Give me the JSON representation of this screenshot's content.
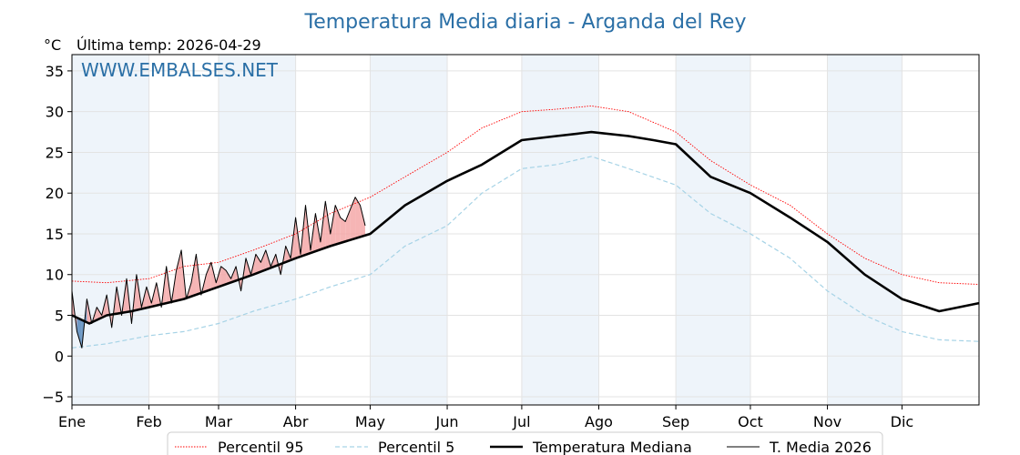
{
  "header": {
    "title": "Temperatura Media diaria - Arganda del Rey",
    "unit_label": "°C",
    "last_temp": "Última temp: 2026-04-29",
    "watermark": "WWW.EMBALSES.NET"
  },
  "chart_data": {
    "type": "line",
    "title": "Temperatura Media diaria - Arganda del Rey",
    "ylabel": "°C",
    "xlabel": "",
    "ylim": [
      -6,
      37
    ],
    "xlim": [
      1,
      366
    ],
    "y_ticks": [
      -5,
      0,
      5,
      10,
      15,
      20,
      25,
      30,
      35
    ],
    "y_tick_labels": [
      "−5",
      "0",
      "5",
      "10",
      "15",
      "20",
      "25",
      "30",
      "35"
    ],
    "x_ticks": [
      {
        "day": 1,
        "label": "Ene"
      },
      {
        "day": 32,
        "label": "Feb"
      },
      {
        "day": 60,
        "label": "Mar"
      },
      {
        "day": 91,
        "label": "Abr"
      },
      {
        "day": 121,
        "label": "May"
      },
      {
        "day": 152,
        "label": "Jun"
      },
      {
        "day": 182,
        "label": "Jul"
      },
      {
        "day": 213,
        "label": "Ago"
      },
      {
        "day": 244,
        "label": "Sep"
      },
      {
        "day": 274,
        "label": "Oct"
      },
      {
        "day": 305,
        "label": "Nov"
      },
      {
        "day": 335,
        "label": "Dic"
      }
    ],
    "shaded_months": [
      [
        1,
        32
      ],
      [
        60,
        91
      ],
      [
        121,
        152
      ],
      [
        182,
        213
      ],
      [
        244,
        274
      ],
      [
        305,
        335
      ]
    ],
    "grid": true,
    "legend_position": "bottom",
    "x_unit": "día del año",
    "series": [
      {
        "name": "Percentil 95",
        "color": "#ff0000",
        "style": "dotted",
        "x": [
          1,
          15,
          32,
          46,
          60,
          74,
          91,
          105,
          121,
          135,
          152,
          166,
          182,
          196,
          210,
          225,
          244,
          258,
          274,
          290,
          305,
          320,
          335,
          350,
          366
        ],
        "y": [
          9.2,
          9.0,
          9.5,
          11.0,
          11.5,
          13.0,
          15.0,
          17.5,
          19.5,
          22.0,
          25.0,
          28.0,
          30.0,
          30.3,
          30.7,
          30.0,
          27.5,
          24.0,
          21.0,
          18.5,
          15.0,
          12.0,
          10.0,
          9.0,
          8.8
        ]
      },
      {
        "name": "Percentil 5",
        "color": "#a6d3e6",
        "style": "dashed",
        "x": [
          1,
          15,
          32,
          46,
          60,
          74,
          91,
          105,
          121,
          135,
          152,
          166,
          182,
          196,
          210,
          225,
          244,
          258,
          274,
          290,
          305,
          320,
          335,
          350,
          366
        ],
        "y": [
          1.0,
          1.5,
          2.5,
          3.0,
          4.0,
          5.5,
          7.0,
          8.5,
          10.0,
          13.5,
          16.0,
          20.0,
          23.0,
          23.5,
          24.5,
          23.0,
          21.0,
          17.5,
          15.0,
          12.0,
          8.0,
          5.0,
          3.0,
          2.0,
          1.8
        ]
      },
      {
        "name": "Temperatura Mediana",
        "color": "#000000",
        "style": "thick",
        "x": [
          1,
          8,
          15,
          25,
          32,
          46,
          60,
          74,
          91,
          105,
          121,
          135,
          152,
          166,
          182,
          196,
          210,
          225,
          235,
          244,
          258,
          274,
          290,
          305,
          320,
          335,
          350,
          366
        ],
        "y": [
          5.0,
          4.0,
          5.0,
          5.5,
          6.0,
          7.0,
          8.5,
          10.0,
          12.0,
          13.5,
          15.0,
          18.5,
          21.5,
          23.5,
          26.5,
          27.0,
          27.5,
          27.0,
          26.5,
          26.0,
          22.0,
          20.0,
          17.0,
          14.0,
          10.0,
          7.0,
          5.5,
          6.5
        ]
      },
      {
        "name": "T. Media 2026",
        "color": "#000000",
        "style": "thin",
        "x": [
          1,
          3,
          5,
          7,
          9,
          11,
          13,
          15,
          17,
          19,
          21,
          23,
          25,
          27,
          29,
          31,
          33,
          35,
          37,
          39,
          41,
          43,
          45,
          47,
          49,
          51,
          53,
          55,
          57,
          59,
          61,
          63,
          65,
          67,
          69,
          71,
          73,
          75,
          77,
          79,
          81,
          83,
          85,
          87,
          89,
          91,
          93,
          95,
          97,
          99,
          101,
          103,
          105,
          107,
          109,
          111,
          113,
          115,
          117,
          119
        ],
        "y": [
          8.0,
          3.0,
          1.0,
          7.0,
          4.0,
          6.0,
          5.0,
          7.5,
          3.5,
          8.5,
          5.0,
          9.5,
          4.0,
          10.0,
          6.0,
          8.5,
          6.5,
          9.0,
          6.0,
          11.0,
          6.5,
          10.5,
          13.0,
          7.0,
          9.0,
          12.5,
          7.5,
          10.0,
          11.5,
          9.0,
          11.0,
          10.5,
          9.5,
          11.0,
          8.0,
          12.0,
          10.0,
          12.5,
          11.5,
          13.0,
          11.0,
          12.5,
          10.0,
          13.5,
          12.0,
          17.0,
          12.5,
          18.5,
          13.0,
          17.5,
          14.0,
          19.0,
          15.0,
          18.5,
          17.0,
          16.5,
          18.0,
          19.5,
          18.5,
          16.0
        ]
      }
    ]
  },
  "legend": {
    "items": [
      {
        "label": "Percentil 95"
      },
      {
        "label": "Percentil 5"
      },
      {
        "label": "Temperatura Mediana"
      },
      {
        "label": "T. Media 2026"
      }
    ]
  }
}
